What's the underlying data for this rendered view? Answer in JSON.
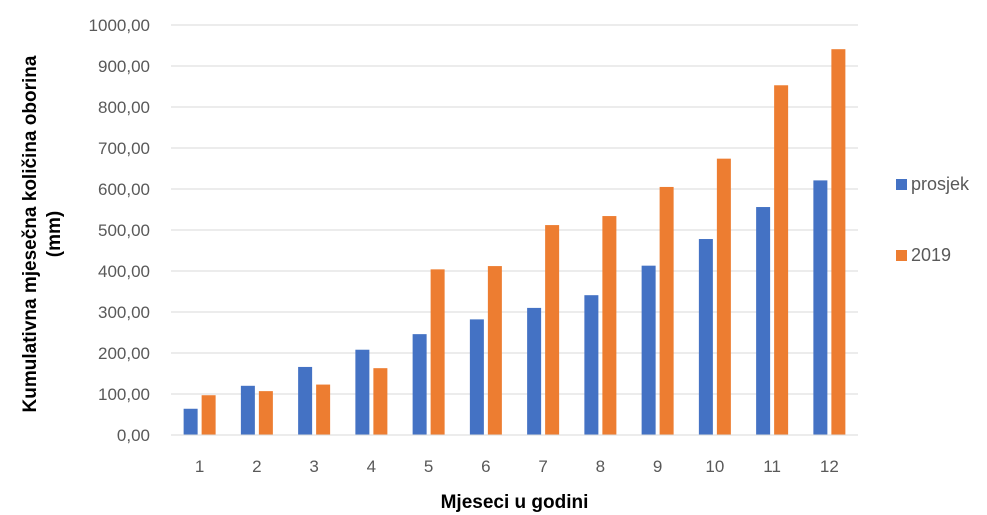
{
  "chart_data": {
    "type": "bar",
    "xlabel": "Mjeseci u godini",
    "ylabel_lines": [
      "Kumulativna mjesečna količina oborina",
      "(mm)"
    ],
    "ylim": [
      0,
      1000
    ],
    "yticks": [
      "0,00",
      "100,00",
      "200,00",
      "300,00",
      "400,00",
      "500,00",
      "600,00",
      "700,00",
      "800,00",
      "900,00",
      "1000,00"
    ],
    "categories": [
      "1",
      "2",
      "3",
      "4",
      "5",
      "6",
      "7",
      "8",
      "9",
      "10",
      "11",
      "12"
    ],
    "series": [
      {
        "name": "prosjek",
        "color": "#4472C4",
        "values": [
          64,
          120,
          166,
          208,
          246,
          282,
          310,
          341,
          413,
          478,
          556,
          621
        ]
      },
      {
        "name": "2019",
        "color": "#ED7D31",
        "values": [
          97,
          107,
          123,
          163,
          404,
          412,
          512,
          534,
          605,
          674,
          853,
          941
        ]
      }
    ],
    "grid": true,
    "legend_position": "right"
  }
}
